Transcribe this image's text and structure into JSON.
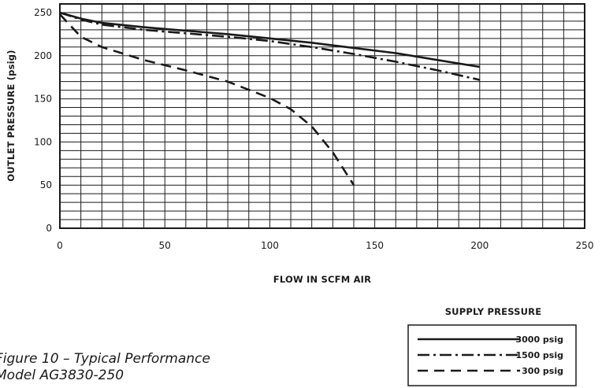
{
  "chart_data": {
    "type": "line",
    "xlabel": "FLOW IN SCFM AIR",
    "ylabel": "OUTLET PRESSURE (psig)",
    "xlim": [
      0,
      250
    ],
    "ylim": [
      0,
      260
    ],
    "x_ticks": [
      "0",
      "50",
      "100",
      "150",
      "200",
      "250"
    ],
    "y_ticks": [
      "0",
      "50",
      "100",
      "150",
      "200",
      "250"
    ],
    "grid": true,
    "legend_title": "SUPPLY PRESSURE",
    "legend_position": "bottom-right",
    "series": [
      {
        "name": "3000 psig",
        "style": "solid",
        "x": [
          0,
          10,
          20,
          40,
          60,
          80,
          100,
          120,
          140,
          160,
          180,
          200
        ],
        "y": [
          250,
          243,
          238,
          233,
          229,
          225,
          220,
          215,
          209,
          203,
          195,
          187
        ]
      },
      {
        "name": "1500 psig",
        "style": "dash-dot",
        "x": [
          0,
          10,
          20,
          40,
          60,
          80,
          100,
          120,
          140,
          160,
          180,
          200
        ],
        "y": [
          250,
          242,
          236,
          230,
          226,
          222,
          217,
          210,
          202,
          193,
          183,
          172
        ]
      },
      {
        "name": "300 psig",
        "style": "dashed",
        "x": [
          0,
          10,
          20,
          40,
          60,
          80,
          100,
          110,
          120,
          130,
          140
        ],
        "y": [
          248,
          222,
          210,
          195,
          183,
          170,
          151,
          138,
          118,
          88,
          50
        ]
      }
    ]
  },
  "caption": {
    "line1": "Figure 10 – Typical Performance",
    "line2": "Model AG3830-250"
  },
  "colors": {
    "ink": "#1a1a1a",
    "background": "#ffffff"
  }
}
